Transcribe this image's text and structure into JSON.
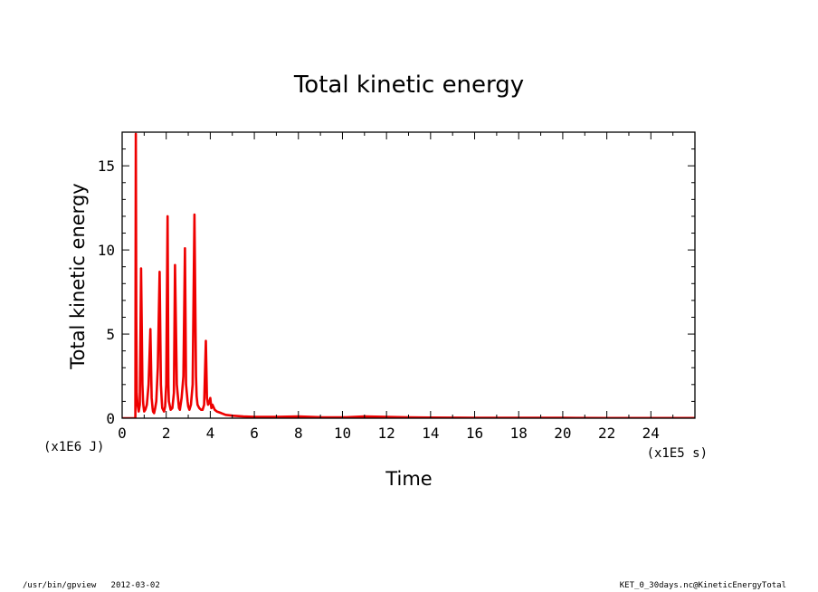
{
  "footer": {
    "program": "/usr/bin/gpview",
    "date": "2012-03-02",
    "source": "KET_0_30days.nc@KineticEnergyTotal"
  },
  "chart_data": {
    "type": "line",
    "title": "Total kinetic energy",
    "xlabel": "Time",
    "ylabel": "Total kinetic energy",
    "x_scale_label": "(x1E5 s)",
    "y_scale_label": "(x1E6 J)",
    "xlim": [
      0,
      26
    ],
    "ylim": [
      0,
      17
    ],
    "x_ticks": [
      "0",
      "2",
      "4",
      "6",
      "8",
      "10",
      "12",
      "14",
      "16",
      "18",
      "20",
      "22",
      "24"
    ],
    "y_ticks": [
      "0",
      "5",
      "10",
      "15"
    ],
    "grid": false,
    "line_color": "#ee0000",
    "series": [
      {
        "x": [
          0,
          0.6,
          0.62,
          0.64,
          0.66,
          0.7,
          0.75,
          0.8,
          0.86,
          0.92,
          0.95,
          0.97,
          1.0,
          1.05,
          1.12,
          1.2,
          1.28,
          1.34,
          1.38,
          1.4,
          1.45,
          1.5,
          1.55,
          1.62,
          1.7,
          1.76,
          1.8,
          1.82,
          1.9,
          1.95,
          2.0,
          2.06,
          2.1,
          2.12,
          2.2,
          2.28,
          2.35,
          2.4,
          2.48,
          2.55,
          2.58,
          2.62,
          2.7,
          2.78,
          2.85,
          2.9,
          2.97,
          3.0,
          3.05,
          3.12,
          3.2,
          3.28,
          3.35,
          3.38,
          3.42,
          3.5,
          3.58,
          3.65,
          3.72,
          3.8,
          3.85,
          3.9,
          3.95,
          4.0,
          4.05,
          4.1,
          4.2,
          4.3,
          4.5,
          4.7,
          5.0,
          5.5,
          6.0,
          7.0,
          8.0,
          9.0,
          10.0,
          11.0,
          12.0,
          13.0,
          14.0,
          15.0,
          16.0,
          18.0,
          20.0,
          22.0,
          24.0,
          26.0
        ],
        "y": [
          0,
          0,
          16.9,
          6.0,
          1.5,
          0.8,
          0.4,
          0.8,
          8.9,
          2.0,
          1.0,
          0.7,
          0.4,
          0.5,
          0.8,
          2.0,
          5.3,
          1.2,
          0.6,
          0.4,
          0.3,
          0.6,
          1.0,
          3.0,
          8.7,
          2.0,
          1.0,
          0.6,
          0.4,
          0.7,
          2.0,
          12.0,
          2.0,
          1.0,
          0.5,
          0.6,
          1.5,
          9.1,
          2.0,
          1.0,
          0.6,
          0.5,
          1.2,
          2.5,
          10.1,
          2.0,
          1.0,
          0.7,
          0.5,
          0.8,
          2.0,
          12.1,
          2.5,
          1.3,
          0.8,
          0.6,
          0.5,
          0.5,
          0.8,
          4.6,
          1.2,
          0.8,
          0.9,
          1.2,
          0.6,
          0.8,
          0.5,
          0.4,
          0.3,
          0.2,
          0.15,
          0.1,
          0.08,
          0.08,
          0.1,
          0.06,
          0.05,
          0.1,
          0.08,
          0.05,
          0.04,
          0.03,
          0.02,
          0.02,
          0.02,
          0.01,
          0.01,
          0.01
        ]
      }
    ]
  }
}
